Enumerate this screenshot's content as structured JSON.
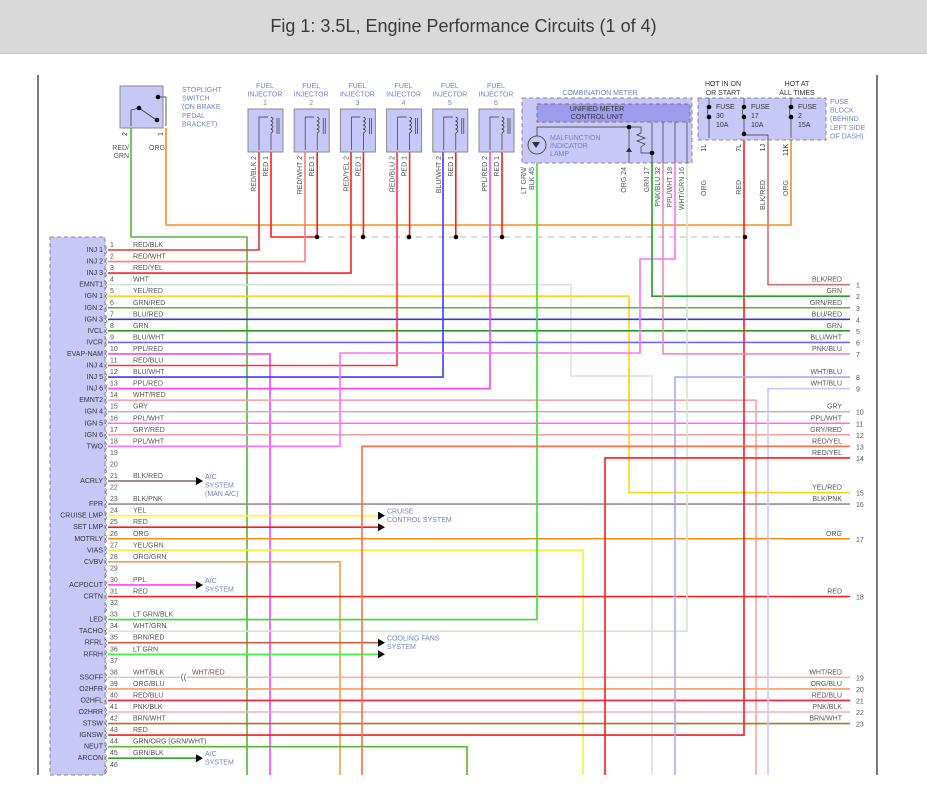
{
  "header": {
    "title": "Fig 1: 3.5L, Engine Performance Circuits (1 of 4)"
  },
  "stoplight_switch": {
    "name_lines": [
      "STOPLIGHT",
      "SWITCH",
      "(ON BRAKE",
      "PEDAL",
      "BRACKET)"
    ],
    "pins": [
      {
        "num": "2",
        "wire_lines": [
          "RED/",
          "GRN"
        ],
        "color": "#58b040"
      },
      {
        "num": "1",
        "wire_lines": [
          "ORG"
        ],
        "color": "#ff8c1a"
      }
    ]
  },
  "injectors": [
    {
      "title_lines": [
        "FUEL",
        "INJECTOR",
        "1"
      ],
      "pin2": "RED/BLK 2",
      "pin1": "RED 1",
      "pin2_color": "#e63030"
    },
    {
      "title_lines": [
        "FUEL",
        "INJECTOR",
        "2"
      ],
      "pin2": "RED/WHT 2",
      "pin1": "RED 1",
      "pin2_color": "#ff7a7a"
    },
    {
      "title_lines": [
        "FUEL",
        "INJECTOR",
        "3"
      ],
      "pin2": "RED/YEL 2",
      "pin1": "RED 1",
      "pin2_color": "#ff3020"
    },
    {
      "title_lines": [
        "FUEL",
        "INJECTOR",
        "4"
      ],
      "pin2": "RED/BLU 2",
      "pin1": "RED 1",
      "pin2_color": "#ff3040"
    },
    {
      "title_lines": [
        "FUEL",
        "INJECTOR",
        "5"
      ],
      "pin2": "BLU/WHT 2",
      "pin1": "RED 1",
      "pin2_color": "#3a3aff"
    },
    {
      "title_lines": [
        "FUEL",
        "INJECTOR",
        "6"
      ],
      "pin2": "PPL/RED 2",
      "pin1": "RED 1",
      "pin2_color": "#ff40ff"
    }
  ],
  "combination_meter": {
    "title": "COMBINATION METER",
    "unit_lines": [
      "UNIFIED METER",
      "CONTROL UNIT"
    ],
    "lamp_lines": [
      "MALFUNCTION",
      "INDICATOR",
      "LAMP"
    ],
    "pins": [
      {
        "label_lines": [
          "LT GRN/",
          "BLK  45"
        ],
        "color": "#30e030"
      },
      {
        "label_lines": [
          "ORG  24"
        ],
        "color": "#ff8c1a"
      },
      {
        "label_lines": [
          "GRN  17"
        ],
        "color": "#20a020"
      },
      {
        "label_lines": [
          "PNK/BLU  32"
        ],
        "color": "#f08ab8"
      },
      {
        "label_lines": [
          "PPL/WHT  18"
        ],
        "color": "#ff60ff"
      },
      {
        "label_lines": [
          "WHT/GRN  16"
        ],
        "color": "#a8d8a0"
      }
    ]
  },
  "fuse_block": {
    "hot_run_lines": [
      "HOT IN ON",
      "OR START"
    ],
    "hot_always_lines": [
      "HOT AT",
      "ALL TIMES"
    ],
    "name_lines": [
      "FUSE",
      "BLOCK",
      "(BEHIND",
      "LEFT SIDE",
      "OF DASH)"
    ],
    "fuses": [
      {
        "lines": [
          "FUSE",
          "30",
          "10A"
        ]
      },
      {
        "lines": [
          "FUSE",
          "17",
          "10A"
        ]
      },
      {
        "lines": [
          "FUSE",
          "2",
          "15A"
        ]
      }
    ],
    "pins": [
      {
        "num": "1L",
        "wire": "ORG",
        "color": "#ff8c1a"
      },
      {
        "num": "7L",
        "wire": "RED",
        "color": "#ff1a1a"
      },
      {
        "num": "1J",
        "wire": "BLK/RED",
        "color": "#8a6a6a"
      },
      {
        "num": "11K",
        "wire": "ORG",
        "color": "#ff8c1a"
      }
    ]
  },
  "ecm": {
    "pins": [
      {
        "num": "1",
        "name": "INJ 1",
        "wire": "RED/BLK",
        "color": "#e63030"
      },
      {
        "num": "2",
        "name": "INJ 2",
        "wire": "RED/WHT",
        "color": "#ff7a7a"
      },
      {
        "num": "3",
        "name": "INJ 3",
        "wire": "RED/YEL",
        "color": "#ff2020"
      },
      {
        "num": "4",
        "name": "EMNT1",
        "wire": "WHT",
        "color": "#dddddd"
      },
      {
        "num": "5",
        "name": "IGN 1",
        "wire": "YEL/RED",
        "color": "#ffd21a"
      },
      {
        "num": "6",
        "name": "IGN 2",
        "wire": "GRN/RED",
        "color": "#58b040"
      },
      {
        "num": "7",
        "name": "IGN 3",
        "wire": "BLU/RED",
        "color": "#3434e0"
      },
      {
        "num": "8",
        "name": "IVCL",
        "wire": "GRN",
        "color": "#20a020"
      },
      {
        "num": "9",
        "name": "IVCR",
        "wire": "BLU/WHT",
        "color": "#6a6aff"
      },
      {
        "num": "10",
        "name": "EVAP-NAM",
        "wire": "PPL/RED",
        "color": "#ff40ff"
      },
      {
        "num": "11",
        "name": "INJ 4",
        "wire": "RED/BLU",
        "color": "#ff3040"
      },
      {
        "num": "12",
        "name": "INJ 5",
        "wire": "BLU/WHT",
        "color": "#3a3aff"
      },
      {
        "num": "13",
        "name": "INJ 6",
        "wire": "PPL/RED",
        "color": "#ff40ff"
      },
      {
        "num": "14",
        "name": "EMNT2",
        "wire": "WHT/RED",
        "color": "#f4a4a4"
      },
      {
        "num": "15",
        "name": "IGN 4",
        "wire": "GRY",
        "color": "#bbbbbb"
      },
      {
        "num": "16",
        "name": "IGN 5",
        "wire": "PPL/WHT",
        "color": "#ff66ff"
      },
      {
        "num": "17",
        "name": "IGN 6",
        "wire": "GRY/RED",
        "color": "#f0a4a4"
      },
      {
        "num": "18",
        "name": "TWO",
        "wire": "PPL/WHT",
        "color": "#ff70ff"
      },
      {
        "num": "19",
        "name": "",
        "wire": "",
        "color": ""
      },
      {
        "num": "20",
        "name": "",
        "wire": "",
        "color": ""
      },
      {
        "num": "21",
        "name": "ACRLY",
        "wire": "BLK/RED",
        "color": "#7a6a6a"
      },
      {
        "num": "22",
        "name": "",
        "wire": "",
        "color": ""
      },
      {
        "num": "23",
        "name": "FPR",
        "wire": "BLK/PNK",
        "color": "#9a8a90"
      },
      {
        "num": "24",
        "name": "CRUISE LMP",
        "wire": "YEL",
        "color": "#ffff00"
      },
      {
        "num": "25",
        "name": "SET LMP",
        "wire": "RED",
        "color": "#ff1a1a"
      },
      {
        "num": "26",
        "name": "MOTRLY",
        "wire": "ORG",
        "color": "#ff8c1a"
      },
      {
        "num": "27",
        "name": "VIAS",
        "wire": "YEL/GRN",
        "color": "#eeee44"
      },
      {
        "num": "28",
        "name": "CVBV",
        "wire": "ORG/GRN",
        "color": "#f0a040"
      },
      {
        "num": "29",
        "name": "",
        "wire": "",
        "color": ""
      },
      {
        "num": "30",
        "name": "ACPDCUT",
        "wire": "PPL",
        "color": "#ff40ff"
      },
      {
        "num": "31",
        "name": "CRTN",
        "wire": "RED",
        "color": "#ff1a1a"
      },
      {
        "num": "32",
        "name": "",
        "wire": "",
        "color": ""
      },
      {
        "num": "33",
        "name": "LED",
        "wire": "LT GRN/BLK",
        "color": "#30e030"
      },
      {
        "num": "34",
        "name": "TACHO",
        "wire": "WHT/GRN",
        "color": "#cfe6cf"
      },
      {
        "num": "35",
        "name": "RFRL",
        "wire": "BRN/RED",
        "color": "#c06040"
      },
      {
        "num": "36",
        "name": "RFRH",
        "wire": "LT GRN",
        "color": "#30ff30"
      },
      {
        "num": "37",
        "name": "",
        "wire": "",
        "color": ""
      },
      {
        "num": "38",
        "name": "SSOFF",
        "wire": "WHT/BLK",
        "color": "#cccccc"
      },
      {
        "num": "39",
        "name": "O2HFR",
        "wire": "ORG/BLU",
        "color": "#f0a060"
      },
      {
        "num": "40",
        "name": "O2HFL",
        "wire": "RED/BLU",
        "color": "#ff1a3a"
      },
      {
        "num": "41",
        "name": "O2HRR",
        "wire": "PNK/BLK",
        "color": "#f4b0c0"
      },
      {
        "num": "42",
        "name": "STSW",
        "wire": "BRN/WHT",
        "color": "#b07020"
      },
      {
        "num": "43",
        "name": "IGNSW",
        "wire": "RED",
        "color": "#ff1a1a"
      },
      {
        "num": "44",
        "name": "NEUT",
        "wire": "GRN/ORG (GRN/WHT)",
        "color": "#60b030"
      },
      {
        "num": "45",
        "name": "ARCON",
        "wire": "GRN/BLK",
        "color": "#30a030"
      },
      {
        "num": "46",
        "name": "",
        "wire": "",
        "color": ""
      }
    ]
  },
  "destinations": [
    {
      "pins": [
        "21"
      ],
      "lines": [
        "A/C",
        "SYSTEM",
        "(MAN A/C)"
      ]
    },
    {
      "pins": [
        "24",
        "25"
      ],
      "lines": [
        "CRUISE",
        "CONTROL SYSTEM"
      ]
    },
    {
      "pins": [
        "30"
      ],
      "lines": [
        "A/C",
        "SYSTEM"
      ]
    },
    {
      "pins": [
        "35",
        "36"
      ],
      "lines": [
        "COOLING FANS",
        "SYSTEM"
      ]
    },
    {
      "pins": [
        "45"
      ],
      "lines": [
        "A/C",
        "SYSTEM"
      ]
    }
  ],
  "inline_connector": {
    "pin": "38",
    "far_wire": "WHT/RED",
    "far_color": "#f4b0b0"
  },
  "right_connector": {
    "pins": [
      {
        "num": "1",
        "wire": "BLK/RED",
        "color": "#d07070"
      },
      {
        "num": "2",
        "wire": "GRN",
        "color": "#20a020"
      },
      {
        "num": "3",
        "wire": "GRN/RED",
        "color": "#58b040"
      },
      {
        "num": "4",
        "wire": "BLU/RED",
        "color": "#3434e0"
      },
      {
        "num": "5",
        "wire": "GRN",
        "color": "#20a020"
      },
      {
        "num": "6",
        "wire": "BLU/WHT",
        "color": "#6a6aff"
      },
      {
        "num": "7",
        "wire": "PNK/BLU",
        "color": "#f08ab8"
      },
      {
        "num": "8",
        "wire": "WHT/BLU",
        "color": "#a8a8ff"
      },
      {
        "num": "9",
        "wire": "WHT/BLU",
        "color": "#c8c8ff"
      },
      {
        "num": "10",
        "wire": "GRY",
        "color": "#bbbbbb"
      },
      {
        "num": "11",
        "wire": "PPL/WHT",
        "color": "#ff66ff"
      },
      {
        "num": "12",
        "wire": "GRY/RED",
        "color": "#f0a4a4"
      },
      {
        "num": "13",
        "wire": "RED/YEL",
        "color": "#ff6a4a"
      },
      {
        "num": "14",
        "wire": "RED/YEL",
        "color": "#ff1a1a"
      },
      {
        "num": "15",
        "wire": "YEL/RED",
        "color": "#ffe060"
      },
      {
        "num": "16",
        "wire": "BLK/PNK",
        "color": "#9a8a90"
      },
      {
        "num": "17",
        "wire": "ORG",
        "color": "#ff8c1a"
      },
      {
        "num": "18",
        "wire": "RED",
        "color": "#ff1a1a"
      },
      {
        "num": "19",
        "wire": "WHT/RED",
        "color": "#f4b0b0"
      },
      {
        "num": "20",
        "wire": "ORG/BLU",
        "color": "#f0a060"
      },
      {
        "num": "21",
        "wire": "RED/BLU",
        "color": "#ff1a3a"
      },
      {
        "num": "22",
        "wire": "PNK/BLK",
        "color": "#f4b0c0"
      },
      {
        "num": "23",
        "wire": "BRN/WHT",
        "color": "#b07020"
      }
    ]
  },
  "colors": {
    "component_fill": "#c8c8f8",
    "unit_fill": "#9c9cef",
    "component_text": "#6f84c6",
    "frame": "#222222"
  }
}
